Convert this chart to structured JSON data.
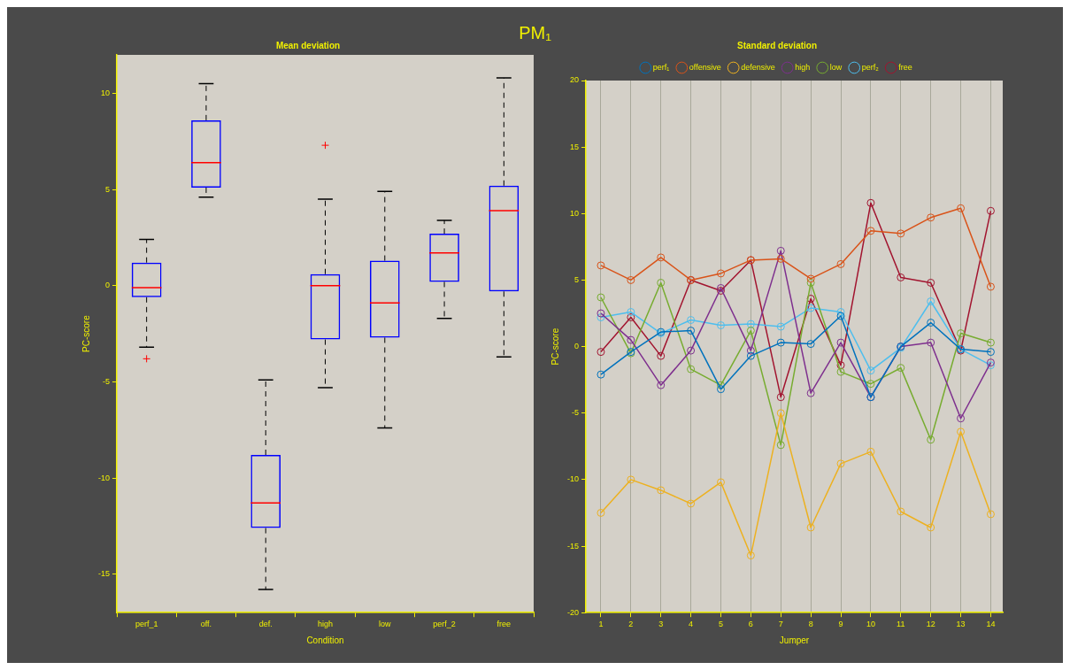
{
  "chart_data": [
    {
      "type": "box",
      "title": "Mean deviation",
      "annotations": [
        "PM₁"
      ],
      "xlabel": "Condition",
      "ylabel": "PC-score",
      "categories": [
        "perf_1",
        "off.",
        "def.",
        "high",
        "low",
        "perf_2",
        "free"
      ],
      "ylim": [
        -17,
        12
      ],
      "yticks": [
        -15,
        -10,
        -5,
        0,
        5,
        10
      ],
      "grid": false,
      "boxes": [
        {
          "low": -3.2,
          "q1": -0.6,
          "median": -0.1,
          "q3": 1.2,
          "high": 2.4,
          "outliers": [
            -3.8
          ]
        },
        {
          "low": 4.6,
          "q1": 5.1,
          "median": 6.4,
          "q3": 8.6,
          "high": 10.5
        },
        {
          "low": -15.8,
          "q1": -12.6,
          "median": -11.3,
          "q3": -8.8,
          "high": -4.9
        },
        {
          "low": -5.3,
          "q1": -2.8,
          "median": 0,
          "q3": 0.6,
          "high": 4.5,
          "outliers": [
            7.3
          ]
        },
        {
          "low": -7.4,
          "q1": -2.7,
          "median": -0.9,
          "q3": 1.3,
          "high": 4.9
        },
        {
          "low": -1.7,
          "q1": 0.2,
          "median": 1.7,
          "q3": 2.7,
          "high": 3.4
        },
        {
          "low": -3.7,
          "q1": -0.3,
          "median": 3.9,
          "q3": 5.2,
          "high": 10.8
        }
      ]
    },
    {
      "type": "line",
      "title": "Standard deviation",
      "xlabel": "Jumper",
      "ylabel": "PC-score",
      "x": [
        1,
        2,
        3,
        4,
        5,
        6,
        7,
        8,
        9,
        10,
        11,
        12,
        13,
        14
      ],
      "xlim": [
        0.5,
        14.4
      ],
      "xticks": [
        1,
        2,
        3,
        4,
        5,
        6,
        7,
        8,
        9,
        10,
        11,
        12,
        13,
        14
      ],
      "ylim": [
        -20,
        20
      ],
      "yticks": [
        -20,
        -15,
        -10,
        -5,
        0,
        5,
        10,
        15,
        20
      ],
      "grid": "x",
      "legend": "top",
      "marker": "circle",
      "series": [
        {
          "name": "perf₁",
          "color": "#0072bd",
          "values": [
            -2.1,
            -0.4,
            1.1,
            1.2,
            -3.2,
            -0.7,
            0.3,
            0.2,
            2.3,
            -3.8,
            0,
            1.8,
            -0.2,
            -0.4
          ]
        },
        {
          "name": "offensive",
          "color": "#d95319",
          "values": [
            6.1,
            5.0,
            6.7,
            5.0,
            5.5,
            6.5,
            6.6,
            5.1,
            6.2,
            8.7,
            8.5,
            9.7,
            10.4,
            4.5
          ]
        },
        {
          "name": "defensive",
          "color": "#edb120",
          "values": [
            -12.5,
            -10.0,
            -10.8,
            -11.8,
            -10.2,
            -15.7,
            -5.0,
            -13.6,
            -8.8,
            -7.9,
            -12.4,
            -13.6,
            -6.4,
            -12.6
          ]
        },
        {
          "name": "high",
          "color": "#7e2f8e",
          "values": [
            2.5,
            0.5,
            -2.9,
            -0.3,
            4.4,
            -0.3,
            7.2,
            -3.5,
            0.3,
            -3.8,
            0,
            0.3,
            -5.4,
            -1.2
          ]
        },
        {
          "name": "low",
          "color": "#77ac30",
          "values": [
            3.7,
            -0.5,
            4.8,
            -1.7,
            -2.9,
            1.2,
            -7.4,
            4.8,
            -1.9,
            -2.8,
            -1.6,
            -7.0,
            1.0,
            0.3
          ]
        },
        {
          "name": "perf₂",
          "color": "#4dbeee",
          "values": [
            2.2,
            2.6,
            1.0,
            2.0,
            1.6,
            1.7,
            1.5,
            2.9,
            2.6,
            -1.8,
            -0.1,
            3.4,
            -0.2,
            -1.4
          ]
        },
        {
          "name": "free",
          "color": "#a2142f",
          "values": [
            -0.4,
            2.2,
            -0.7,
            5.0,
            4.2,
            6.5,
            -3.8,
            3.6,
            -1.4,
            10.8,
            5.2,
            4.8,
            -0.3,
            10.2
          ]
        }
      ]
    }
  ]
}
